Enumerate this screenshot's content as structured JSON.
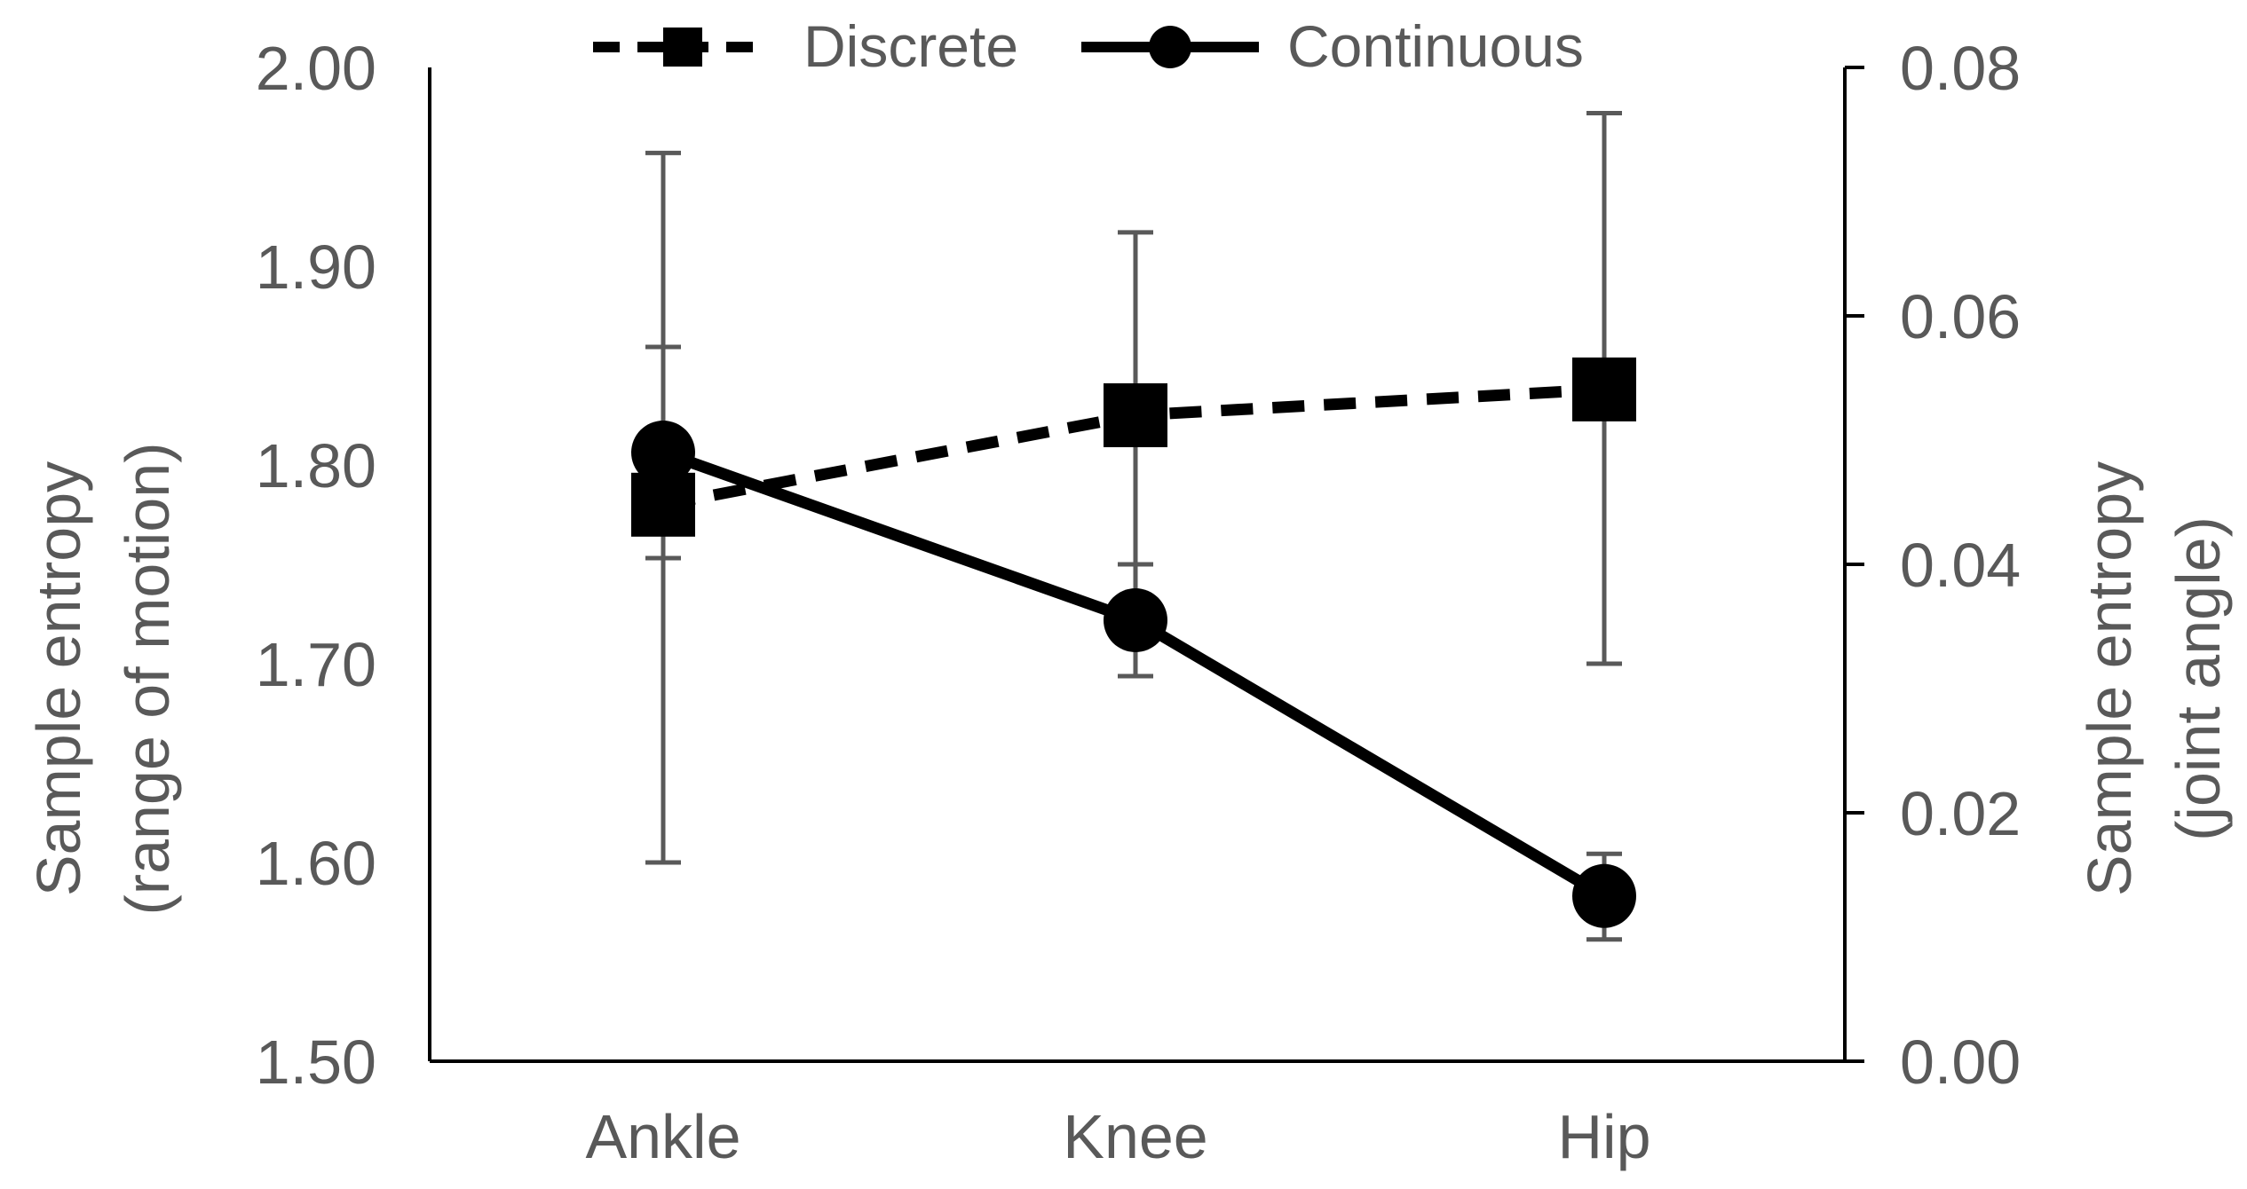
{
  "chart_data": {
    "type": "line",
    "categories": [
      "Ankle",
      "Knee",
      "Hip"
    ],
    "series": [
      {
        "name": "Discrete",
        "axis": "left",
        "line_style": "dashed",
        "marker": "square",
        "values": [
          1.78,
          1.825,
          1.838
        ],
        "error_low": [
          1.6,
          1.75,
          1.7
        ],
        "error_high": [
          1.957,
          1.917,
          1.977
        ]
      },
      {
        "name": "Continuous",
        "axis": "right",
        "line_style": "solid",
        "marker": "circle",
        "values": [
          0.049,
          0.0355,
          0.0133
        ],
        "error_low": [
          0.0405,
          0.031,
          0.0098
        ],
        "error_high": [
          0.0575,
          0.04,
          0.0167
        ]
      }
    ],
    "left_axis": {
      "label_line1": "Sample entropy",
      "label_line2": "(range of motion)",
      "ylim": [
        1.5,
        2.0
      ],
      "ticks": [
        "1.50",
        "1.60",
        "1.70",
        "1.80",
        "1.90",
        "2.00"
      ]
    },
    "right_axis": {
      "label_line1": "Sample entropy",
      "label_line2": "(joint angle)",
      "ylim": [
        0,
        0.08
      ],
      "ticks": [
        "0.00",
        "0.02",
        "0.04",
        "0.06",
        "0.08"
      ]
    },
    "grid": false,
    "legend_position": "top-center",
    "colors": {
      "series": "#000000",
      "error_bar": "#595959",
      "axis": "#000000",
      "text": "#595959"
    }
  }
}
